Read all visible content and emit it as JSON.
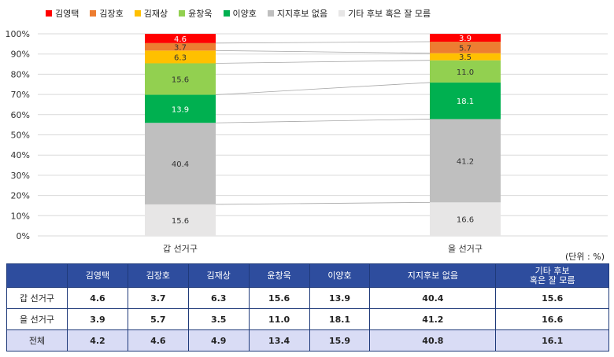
{
  "chart_data": {
    "type": "stacked-bar",
    "orientation": "vertical",
    "stack_mode": "percent",
    "categories": [
      "갑 선거구",
      "을 선거구"
    ],
    "series": [
      {
        "name": "김영택",
        "color": "#ff0000",
        "values": [
          4.6,
          3.9
        ]
      },
      {
        "name": "김장호",
        "color": "#ed7d31",
        "values": [
          3.7,
          5.7
        ]
      },
      {
        "name": "김재상",
        "color": "#ffc000",
        "values": [
          6.3,
          3.5
        ]
      },
      {
        "name": "윤창욱",
        "color": "#92d050",
        "values": [
          15.6,
          11.0
        ]
      },
      {
        "name": "이양호",
        "color": "#00b050",
        "values": [
          13.9,
          18.1
        ]
      },
      {
        "name": "지지후보 없음",
        "color": "#bfbfbf",
        "values": [
          40.4,
          41.2
        ]
      },
      {
        "name": "기타 후보 혹은 잘 모름",
        "color": "#e7e6e6",
        "values": [
          15.6,
          16.6
        ]
      }
    ],
    "ylim": [
      0,
      100
    ],
    "yticks": [
      "0%",
      "10%",
      "20%",
      "30%",
      "40%",
      "50%",
      "60%",
      "70%",
      "80%",
      "90%",
      "100%"
    ],
    "grid": true,
    "legend_position": "top",
    "series_lines": true
  },
  "unit_label": "(단위 : %)",
  "table": {
    "corner": "",
    "headers": [
      "김영택",
      "김장호",
      "김재상",
      "윤창욱",
      "이양호",
      "지지후보 없음",
      "기타 후보\n혹은 잘 모름"
    ],
    "rows": [
      {
        "label": "갑 선거구",
        "values": [
          "4.6",
          "3.7",
          "6.3",
          "15.6",
          "13.9",
          "40.4",
          "15.6"
        ]
      },
      {
        "label": "을 선거구",
        "values": [
          "3.9",
          "5.7",
          "3.5",
          "11.0",
          "18.1",
          "41.2",
          "16.6"
        ]
      },
      {
        "label": "전체",
        "values": [
          "4.2",
          "4.6",
          "4.9",
          "13.4",
          "15.9",
          "40.8",
          "16.1"
        ]
      }
    ]
  }
}
